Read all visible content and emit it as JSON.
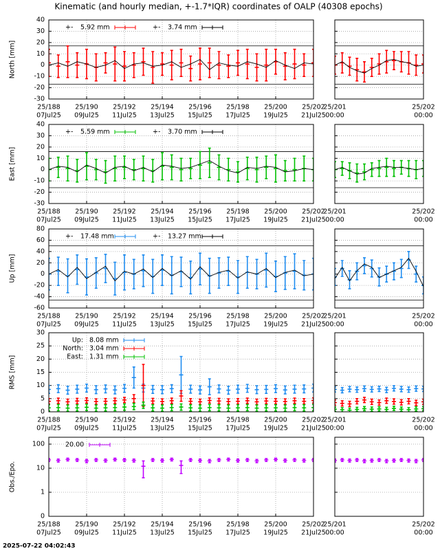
{
  "title": "Kinematic (and hourly median, +-1.7*IQR) coordinates of OALP (40308 epochs)",
  "timestamp": "2025-07-22 04:02:43",
  "main": {
    "xlim": [
      188,
      202
    ],
    "xticks": [
      {
        "value": 188,
        "label": "25/188",
        "sublabel": "07Jul25"
      },
      {
        "value": 190,
        "label": "25/190",
        "sublabel": "09Jul25"
      },
      {
        "value": 192,
        "label": "25/192",
        "sublabel": "11Jul25"
      },
      {
        "value": 194,
        "label": "25/194",
        "sublabel": "13Jul25"
      },
      {
        "value": 196,
        "label": "25/196",
        "sublabel": "15Jul25"
      },
      {
        "value": 198,
        "label": "25/198",
        "sublabel": "17Jul25"
      },
      {
        "value": 200,
        "label": "25/200",
        "sublabel": "19Jul25"
      },
      {
        "value": 202,
        "label": "25/202",
        "sublabel": "21Jul25"
      }
    ],
    "x": [
      188,
      188.5,
      189,
      189.5,
      190,
      190.5,
      191,
      191.5,
      192,
      192.5,
      193,
      193.5,
      194,
      194.5,
      195,
      195.5,
      196,
      196.5,
      197,
      197.5,
      198,
      198.5,
      199,
      199.5,
      200,
      200.5,
      201,
      201.5,
      202
    ]
  },
  "zoom": {
    "xlim": [
      201,
      202
    ],
    "xticks": [
      {
        "value": 201,
        "label": "25/201",
        "sublabel": "00:00"
      },
      {
        "value": 202,
        "label": "25/202",
        "sublabel": "00:00"
      }
    ],
    "x": [
      201,
      201.0833,
      201.1667,
      201.25,
      201.3333,
      201.4167,
      201.5,
      201.5833,
      201.6667,
      201.75,
      201.8333,
      201.9167,
      202
    ]
  },
  "chart_data": [
    {
      "type": "errorbar",
      "ylabel": "North [mm]",
      "ylim": [
        -30,
        40
      ],
      "yticks": [
        -30,
        -20,
        -10,
        0,
        10,
        20,
        30,
        40
      ],
      "ref_lines": [
        17,
        -17
      ],
      "grid": true,
      "series": [
        {
          "name": "5.92 mm",
          "prefix": "+-",
          "color": "#ff0000",
          "values": [
            2,
            -1,
            3,
            0,
            1,
            -2,
            2,
            1,
            -1,
            0,
            3,
            -2,
            1,
            0,
            2,
            -3,
            1,
            2,
            0,
            -1,
            2,
            1,
            -2,
            0,
            3,
            -1,
            1,
            0,
            2
          ],
          "errors": [
            12,
            10,
            14,
            11,
            13,
            12,
            9,
            15,
            13,
            11,
            12,
            14,
            10,
            13,
            12,
            11,
            14,
            13,
            12,
            10,
            11,
            13,
            12,
            14,
            11,
            12,
            13,
            10,
            12
          ],
          "zoom_values": [
            0,
            2,
            -1,
            -4,
            -6,
            -2,
            1,
            3,
            4,
            3,
            2,
            0,
            1
          ],
          "zoom_errors": [
            8,
            9,
            8,
            10,
            9,
            8,
            9,
            10,
            8,
            9,
            10,
            9,
            8
          ]
        }
      ],
      "median": {
        "name": "3.74 mm",
        "prefix": "+-",
        "color": "#000000",
        "values": [
          0,
          2,
          -1,
          3,
          1,
          -2,
          0,
          4,
          -3,
          1,
          2,
          -1,
          0,
          3,
          -2,
          1,
          5,
          -4,
          2,
          0,
          -1,
          3,
          1,
          -2,
          4,
          0,
          -3,
          2,
          1
        ],
        "zoom_values": [
          0,
          3,
          -2,
          -5,
          -7,
          -3,
          0,
          4,
          5,
          3,
          2,
          -1,
          0
        ]
      }
    },
    {
      "type": "errorbar",
      "ylabel": "East [mm]",
      "ylim": [
        -30,
        40
      ],
      "yticks": [
        -30,
        -20,
        -10,
        0,
        10,
        20,
        30,
        40
      ],
      "ref_lines": [
        16,
        -16
      ],
      "grid": true,
      "series": [
        {
          "name": "5.59 mm",
          "prefix": "+-",
          "color": "#00c000",
          "values": [
            0,
            2,
            1,
            -1,
            3,
            0,
            -2,
            1,
            2,
            0,
            1,
            -1,
            3,
            2,
            0,
            1,
            4,
            6,
            2,
            0,
            -2,
            1,
            0,
            2,
            1,
            -1,
            0,
            1,
            0
          ],
          "errors": [
            10,
            9,
            11,
            10,
            12,
            9,
            10,
            11,
            10,
            9,
            11,
            10,
            12,
            11,
            10,
            9,
            12,
            13,
            11,
            10,
            9,
            10,
            11,
            10,
            12,
            9,
            10,
            11,
            10
          ],
          "zoom_values": [
            0,
            1,
            -1,
            -3,
            -2,
            0,
            1,
            2,
            1,
            2,
            1,
            0,
            1
          ],
          "zoom_errors": [
            7,
            6,
            7,
            8,
            7,
            6,
            7,
            8,
            7,
            6,
            7,
            8,
            7
          ]
        }
      ],
      "median": {
        "name": "3.70 mm",
        "prefix": "+-",
        "color": "#000000",
        "values": [
          0,
          3,
          2,
          -2,
          4,
          1,
          -3,
          2,
          3,
          -1,
          2,
          -2,
          4,
          3,
          1,
          2,
          5,
          8,
          3,
          -1,
          -3,
          2,
          1,
          3,
          2,
          -2,
          -1,
          1,
          0
        ],
        "zoom_values": [
          0,
          2,
          -1,
          -4,
          -3,
          1,
          2,
          3,
          2,
          2,
          1,
          0,
          1
        ]
      }
    },
    {
      "type": "errorbar",
      "ylabel": "Up [mm]",
      "ylim": [
        -60,
        80
      ],
      "yticks": [
        -60,
        -40,
        -20,
        0,
        20,
        40,
        60,
        80
      ],
      "ref_lines": [
        50,
        -46
      ],
      "grid": true,
      "series": [
        {
          "name": "17.48 mm",
          "prefix": "+-",
          "color": "#1e8cf0",
          "values": [
            0,
            5,
            -3,
            8,
            -5,
            2,
            10,
            -8,
            3,
            0,
            6,
            -4,
            7,
            -2,
            4,
            -6,
            9,
            -3,
            2,
            5,
            -5,
            3,
            0,
            7,
            -4,
            2,
            5,
            -2,
            0
          ],
          "errors": [
            28,
            25,
            30,
            26,
            32,
            27,
            25,
            29,
            31,
            26,
            28,
            30,
            27,
            33,
            26,
            29,
            28,
            31,
            27,
            25,
            29,
            28,
            26,
            30,
            27,
            29,
            31,
            26,
            28
          ],
          "zoom_values": [
            -5,
            10,
            -10,
            5,
            15,
            10,
            -5,
            0,
            5,
            10,
            25,
            0,
            -20
          ],
          "zoom_errors": [
            15,
            14,
            16,
            15,
            14,
            15,
            16,
            14,
            15,
            16,
            15,
            14,
            15
          ]
        }
      ],
      "median": {
        "name": "13.27 mm",
        "prefix": "+-",
        "color": "#000000",
        "values": [
          0,
          8,
          -5,
          12,
          -8,
          3,
          14,
          -12,
          5,
          0,
          9,
          -6,
          10,
          -3,
          6,
          -9,
          13,
          -4,
          3,
          7,
          -7,
          4,
          0,
          10,
          -6,
          3,
          7,
          -3,
          0
        ],
        "zoom_values": [
          -8,
          12,
          -12,
          6,
          18,
          12,
          -6,
          0,
          6,
          12,
          28,
          5,
          -22
        ]
      }
    },
    {
      "type": "errorbar",
      "ylabel": "RMS [mm]",
      "ylim": [
        0,
        30
      ],
      "yticks": [
        0,
        5,
        10,
        15,
        20,
        25,
        30
      ],
      "grid": true,
      "series": [
        {
          "label": "Up:",
          "name": "8.08 mm",
          "color": "#1e8cf0",
          "values": [
            8.5,
            8.8,
            8.2,
            8.6,
            9,
            8.4,
            8.7,
            8.3,
            8.9,
            13,
            9,
            8.5,
            8.4,
            8.8,
            14,
            8.6,
            8.3,
            9.5,
            8.7,
            8.2,
            8.6,
            8.9,
            8.4,
            8.5,
            8.8,
            8.3,
            8.6,
            8.7,
            9
          ],
          "errors": [
            1.5,
            1.5,
            1.5,
            1.5,
            1.5,
            1.5,
            1.5,
            1.5,
            1.5,
            4,
            1.5,
            1.5,
            1.5,
            1.5,
            7,
            1.5,
            1.5,
            3,
            1.5,
            1.5,
            1.5,
            1.5,
            1.5,
            1.5,
            1.5,
            1.5,
            1.5,
            1.5,
            1.5
          ],
          "zoom_values": [
            8.5,
            8.2,
            8.6,
            8.4,
            8.8,
            8.5,
            8.7,
            8.3,
            8.9,
            8.6,
            8.4,
            8.8,
            8.7
          ],
          "zoom_errors": [
            1,
            1,
            1,
            1,
            1,
            1,
            1,
            1,
            1,
            1,
            1,
            1,
            1
          ]
        },
        {
          "label": "North:",
          "name": "3.04 mm",
          "color": "#ff0000",
          "values": [
            4,
            4.2,
            3.8,
            4.1,
            4.3,
            3.9,
            4,
            4.2,
            4.5,
            5,
            10,
            4.1,
            3.9,
            4.2,
            6,
            4,
            3.8,
            4.3,
            4.1,
            3.9,
            4,
            4.2,
            3.8,
            4.1,
            4,
            3.9,
            4.2,
            4,
            4.3
          ],
          "errors": [
            1,
            1,
            1,
            1,
            1,
            1,
            1,
            1,
            1,
            1.5,
            8,
            1,
            1,
            1,
            2,
            1,
            1,
            1,
            1,
            1,
            1,
            1,
            1,
            1,
            1,
            1,
            1,
            1,
            1
          ],
          "zoom_values": [
            3.5,
            3.2,
            3,
            4,
            4.5,
            3.8,
            3.5,
            4.2,
            3.9,
            3.6,
            4,
            3.4,
            3.8
          ],
          "zoom_errors": [
            1,
            1,
            1,
            1,
            1,
            1,
            1,
            1,
            1,
            1,
            1,
            1,
            1
          ]
        },
        {
          "label": "East:",
          "name": "1.31 mm",
          "color": "#00c000",
          "values": [
            1.5,
            1.6,
            1.4,
            1.5,
            1.7,
            1.4,
            1.5,
            1.6,
            1.8,
            2,
            2.5,
            1.5,
            1.4,
            1.6,
            1.8,
            1.5,
            1.4,
            1.6,
            1.5,
            1.4,
            1.5,
            1.6,
            1.4,
            1.5,
            1.5,
            1.4,
            1.6,
            1.5,
            1.6
          ],
          "errors": [
            1.2,
            1.2,
            1.2,
            1.2,
            1.2,
            1.2,
            1.2,
            1.2,
            1.2,
            1.2,
            1.2,
            1.2,
            1.2,
            1.2,
            1.2,
            1.2,
            1.2,
            1.2,
            1.2,
            1.2,
            1.2,
            1.2,
            1.2,
            1.2,
            1.2,
            1.2,
            1.2,
            1.2,
            1.2
          ],
          "zoom_values": [
            1,
            0.8,
            0.6,
            0.9,
            1.2,
            1,
            1.1,
            0.9,
            1.3,
            1,
            0.8,
            1.1,
            1.2
          ],
          "zoom_errors": [
            0.8,
            0.8,
            0.8,
            0.8,
            0.8,
            0.8,
            0.8,
            0.8,
            0.8,
            0.8,
            0.8,
            0.8,
            0.8
          ]
        }
      ]
    },
    {
      "type": "errorbar",
      "ylabel": "Obs./Epo.",
      "yscale": "log",
      "ylim": [
        0.1,
        193
      ],
      "yticks": [
        {
          "value": 0.1,
          "label": "0"
        },
        1,
        10,
        100
      ],
      "grid": true,
      "series": [
        {
          "name": "20.00",
          "color": "#c000ff",
          "values": [
            22,
            21,
            23,
            22,
            20,
            22,
            21,
            23,
            22,
            21,
            12,
            22,
            21,
            23,
            13,
            22,
            21,
            20,
            22,
            23,
            21,
            22,
            20,
            22,
            23,
            21,
            22,
            21,
            22
          ],
          "errors": [
            3,
            3,
            3,
            3,
            3,
            3,
            3,
            3,
            3,
            3,
            8,
            3,
            3,
            3,
            7,
            3,
            3,
            3,
            3,
            3,
            3,
            3,
            3,
            3,
            3,
            3,
            3,
            3,
            3
          ],
          "zoom_values": [
            21,
            22,
            21,
            22,
            20,
            21,
            22,
            20,
            21,
            22,
            21,
            20,
            22
          ],
          "zoom_errors": [
            3,
            3,
            3,
            3,
            3,
            3,
            3,
            3,
            3,
            3,
            3,
            3,
            3
          ]
        }
      ]
    }
  ]
}
